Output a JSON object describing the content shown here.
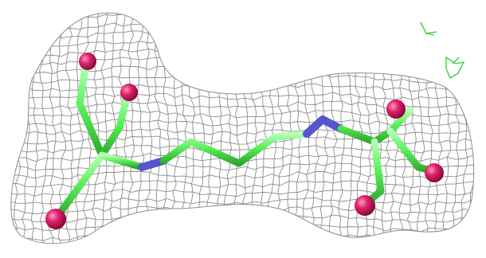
{
  "scene": {
    "background_color": "#ffffff",
    "mesh_color": "#8c8c8c",
    "carbon_color": "#55ee55",
    "nitrogen_color": "#5555cc",
    "oxygen_color": "#e0206a",
    "stray_density_color": "#44cc44"
  }
}
